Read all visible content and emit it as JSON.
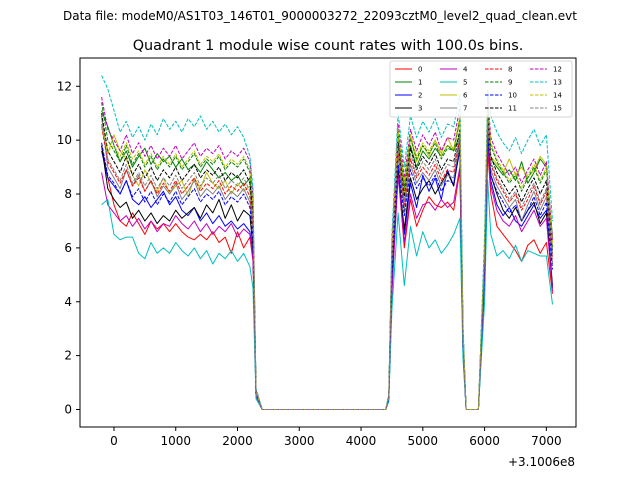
{
  "suptitle": "Data file: modeM0/AS1T03_146T01_9000003272_22093cztM0_level2_quad_clean.evt",
  "chart_data": {
    "type": "line",
    "title": "Quadrant 1 module wise count rates with 100.0s bins.",
    "xlabel": "",
    "ylabel": "",
    "x_offset_label": "+3.1006e8",
    "xlim": [
      -550,
      7480
    ],
    "ylim": [
      -0.65,
      13.05
    ],
    "xticks": [
      0,
      1000,
      2000,
      3000,
      4000,
      5000,
      6000,
      7000
    ],
    "yticks": [
      0,
      2,
      4,
      6,
      8,
      10,
      12
    ],
    "x": [
      -200,
      -100,
      0,
      100,
      200,
      300,
      400,
      500,
      600,
      700,
      800,
      900,
      1000,
      1100,
      1200,
      1300,
      1400,
      1500,
      1600,
      1700,
      1800,
      1900,
      2000,
      2100,
      2200,
      2250,
      2300,
      2400,
      2600,
      2800,
      3000,
      3200,
      3400,
      3600,
      3800,
      4000,
      4200,
      4400,
      4450,
      4500,
      4600,
      4700,
      4800,
      4900,
      5000,
      5100,
      5200,
      5300,
      5400,
      5500,
      5600,
      5650,
      5700,
      5800,
      5900,
      6000,
      6050,
      6100,
      6200,
      6300,
      6400,
      6500,
      6600,
      6700,
      6800,
      6900,
      7000,
      7100
    ],
    "series_style": [
      "solid",
      "solid",
      "solid",
      "solid",
      "solid",
      "solid",
      "solid",
      "solid",
      "dashed",
      "dashed",
      "dashed",
      "dashed",
      "dashed",
      "dashed",
      "dashed",
      "dashed"
    ],
    "legend": {
      "location": "top-right",
      "columns": 4
    },
    "series": [
      {
        "name": "0",
        "color": "#ff0000",
        "values": [
          9.8,
          8.6,
          7.6,
          7.0,
          6.8,
          7.3,
          6.9,
          6.5,
          7.0,
          6.7,
          6.9,
          6.6,
          6.9,
          6.6,
          6.4,
          6.3,
          6.5,
          6.3,
          6.6,
          6.2,
          6.4,
          5.8,
          6.6,
          6.0,
          6.4,
          5.5,
          0.5,
          0.0,
          0.0,
          0.0,
          0.0,
          0.0,
          0.0,
          0.0,
          0.0,
          0.0,
          0.0,
          0.0,
          0.4,
          4.4,
          8.9,
          6.0,
          7.8,
          6.8,
          7.4,
          7.9,
          7.6,
          7.5,
          7.7,
          7.4,
          8.9,
          2.2,
          0.0,
          0.0,
          0.0,
          4.5,
          9.6,
          8.0,
          6.8,
          6.5,
          6.2,
          5.9,
          5.5,
          6.1,
          6.3,
          5.8,
          6.2,
          4.3
        ]
      },
      {
        "name": "1",
        "color": "#008000",
        "values": [
          11.1,
          10.5,
          9.8,
          9.2,
          9.6,
          9.0,
          9.4,
          9.7,
          9.1,
          9.5,
          9.2,
          9.4,
          9.0,
          9.3,
          8.9,
          9.1,
          8.8,
          9.2,
          8.9,
          8.6,
          8.8,
          8.5,
          8.7,
          8.3,
          8.6,
          7.2,
          0.7,
          0.0,
          0.0,
          0.0,
          0.0,
          0.0,
          0.0,
          0.0,
          0.0,
          0.0,
          0.0,
          0.0,
          0.5,
          5.8,
          9.8,
          8.2,
          9.8,
          9.0,
          9.6,
          9.3,
          9.7,
          9.4,
          9.8,
          9.6,
          10.2,
          2.8,
          0.0,
          0.0,
          0.0,
          5.6,
          10.9,
          9.3,
          9.0,
          8.7,
          8.9,
          8.5,
          9.2,
          8.4,
          8.8,
          9.3,
          9.0,
          6.4
        ]
      },
      {
        "name": "2",
        "color": "#0000ff",
        "values": [
          9.6,
          8.6,
          8.3,
          8.0,
          8.5,
          7.8,
          7.6,
          7.9,
          7.5,
          7.8,
          8.1,
          7.6,
          7.9,
          7.4,
          7.2,
          7.5,
          7.0,
          7.3,
          6.9,
          7.2,
          6.8,
          7.0,
          6.7,
          6.9,
          6.6,
          5.8,
          0.6,
          0.0,
          0.0,
          0.0,
          0.0,
          0.0,
          0.0,
          0.0,
          0.0,
          0.0,
          0.0,
          0.0,
          0.4,
          4.6,
          9.0,
          6.5,
          8.4,
          7.5,
          8.7,
          8.1,
          8.6,
          7.8,
          8.9,
          8.3,
          10.1,
          2.4,
          0.0,
          0.0,
          0.0,
          5.0,
          10.2,
          8.5,
          7.6,
          7.2,
          7.5,
          7.0,
          6.8,
          7.2,
          7.6,
          7.1,
          7.4,
          4.6
        ]
      },
      {
        "name": "3",
        "color": "#000000",
        "values": [
          9.8,
          8.2,
          7.8,
          7.5,
          7.7,
          7.1,
          7.4,
          7.0,
          7.3,
          6.9,
          7.2,
          7.0,
          7.4,
          7.1,
          7.3,
          7.5,
          7.1,
          7.6,
          7.3,
          7.8,
          7.1,
          7.6,
          7.0,
          7.4,
          7.2,
          6.0,
          0.6,
          0.0,
          0.0,
          0.0,
          0.0,
          0.0,
          0.0,
          0.0,
          0.0,
          0.0,
          0.0,
          0.0,
          0.4,
          4.8,
          8.8,
          6.7,
          8.6,
          7.8,
          8.2,
          8.5,
          8.0,
          8.4,
          8.8,
          8.3,
          9.7,
          2.3,
          0.0,
          0.0,
          0.0,
          4.8,
          10.1,
          8.7,
          8.0,
          7.4,
          7.1,
          7.5,
          7.0,
          7.4,
          7.7,
          6.9,
          7.3,
          4.5
        ]
      },
      {
        "name": "4",
        "color": "#bf00bf",
        "values": [
          8.8,
          7.6,
          7.3,
          7.0,
          7.2,
          6.8,
          7.1,
          6.7,
          7.0,
          6.6,
          6.9,
          6.8,
          7.2,
          6.9,
          6.7,
          7.0,
          6.6,
          6.9,
          6.5,
          6.8,
          6.6,
          6.9,
          6.4,
          6.7,
          6.5,
          5.6,
          0.5,
          0.0,
          0.0,
          0.0,
          0.0,
          0.0,
          0.0,
          0.0,
          0.0,
          0.0,
          0.0,
          0.0,
          0.4,
          4.3,
          8.7,
          6.2,
          8.0,
          7.1,
          7.6,
          7.7,
          7.4,
          7.8,
          7.5,
          7.7,
          9.0,
          2.2,
          0.0,
          0.0,
          0.0,
          4.6,
          9.8,
          8.3,
          7.4,
          7.0,
          6.8,
          7.2,
          6.6,
          7.0,
          7.4,
          6.8,
          7.1,
          4.4
        ]
      },
      {
        "name": "5",
        "color": "#00bfbf",
        "values": [
          7.6,
          7.8,
          6.5,
          6.3,
          6.4,
          6.4,
          5.8,
          5.6,
          6.2,
          5.8,
          6.0,
          5.8,
          6.2,
          5.9,
          5.7,
          6.0,
          5.6,
          5.9,
          5.4,
          5.8,
          5.6,
          5.9,
          5.5,
          5.8,
          5.3,
          4.5,
          0.4,
          0.0,
          0.0,
          0.0,
          0.0,
          0.0,
          0.0,
          0.0,
          0.0,
          0.0,
          0.0,
          0.0,
          0.3,
          3.7,
          7.3,
          4.6,
          6.8,
          5.7,
          6.6,
          6.0,
          6.3,
          5.8,
          6.1,
          6.5,
          7.1,
          1.9,
          0.0,
          0.0,
          0.0,
          4.0,
          8.5,
          6.5,
          5.7,
          5.9,
          5.6,
          6.1,
          5.5,
          5.9,
          5.8,
          5.7,
          5.7,
          3.9
        ]
      },
      {
        "name": "6",
        "color": "#bfbf00",
        "values": [
          10.8,
          9.5,
          10.2,
          9.6,
          9.3,
          8.7,
          8.3,
          8.9,
          8.4,
          8.1,
          8.6,
          8.0,
          8.3,
          8.5,
          7.9,
          8.6,
          8.2,
          8.8,
          8.4,
          8.2,
          8.5,
          8.0,
          8.4,
          8.1,
          8.3,
          7.0,
          0.7,
          0.0,
          0.0,
          0.0,
          0.0,
          0.0,
          0.0,
          0.0,
          0.0,
          0.0,
          0.0,
          0.0,
          0.5,
          5.8,
          10.2,
          8.0,
          10.1,
          9.2,
          9.8,
          9.4,
          10.0,
          9.5,
          10.1,
          9.6,
          10.7,
          2.9,
          0.0,
          0.0,
          0.0,
          5.9,
          11.1,
          9.4,
          9.1,
          8.8,
          9.3,
          8.7,
          9.0,
          8.6,
          8.9,
          9.4,
          9.1,
          6.2
        ]
      },
      {
        "name": "7",
        "color": "#808080",
        "values": [
          10.9,
          9.0,
          8.6,
          8.2,
          8.9,
          8.3,
          8.7,
          8.1,
          8.5,
          7.9,
          8.3,
          8.0,
          8.4,
          7.8,
          8.1,
          8.5,
          7.9,
          8.2,
          8.0,
          8.3,
          7.8,
          8.1,
          7.9,
          8.2,
          7.7,
          6.6,
          0.6,
          0.0,
          0.0,
          0.0,
          0.0,
          0.0,
          0.0,
          0.0,
          0.0,
          0.0,
          0.0,
          0.0,
          0.5,
          5.2,
          9.4,
          7.4,
          9.1,
          8.4,
          8.8,
          8.5,
          8.9,
          8.3,
          8.7,
          8.6,
          9.9,
          2.6,
          0.0,
          0.0,
          0.0,
          5.3,
          10.5,
          8.9,
          8.3,
          7.9,
          7.5,
          7.8,
          7.0,
          7.6,
          8.1,
          7.4,
          7.9,
          5.4
        ]
      },
      {
        "name": "8",
        "color": "#ff0000",
        "values": [
          10.5,
          9.2,
          8.8,
          8.4,
          8.9,
          8.3,
          8.6,
          8.1,
          8.5,
          8.0,
          8.4,
          8.1,
          8.5,
          8.0,
          8.3,
          8.6,
          8.1,
          8.4,
          8.2,
          8.5,
          8.0,
          8.3,
          8.1,
          8.4,
          7.9,
          6.8,
          0.6,
          0.0,
          0.0,
          0.0,
          0.0,
          0.0,
          0.0,
          0.0,
          0.0,
          0.0,
          0.0,
          0.0,
          0.5,
          5.4,
          9.6,
          7.6,
          9.3,
          8.6,
          9.0,
          8.7,
          9.1,
          8.5,
          8.9,
          8.8,
          10.1,
          2.7,
          0.0,
          0.0,
          0.0,
          5.5,
          10.7,
          9.1,
          8.5,
          8.1,
          7.7,
          8.0,
          7.4,
          7.8,
          8.3,
          7.6,
          8.1,
          5.6
        ]
      },
      {
        "name": "9",
        "color": "#008000",
        "values": [
          11.4,
          10.0,
          9.6,
          9.2,
          9.8,
          9.1,
          9.5,
          9.0,
          9.4,
          8.9,
          9.3,
          9.0,
          9.4,
          8.9,
          9.2,
          9.5,
          9.0,
          9.3,
          9.1,
          9.4,
          8.9,
          9.2,
          9.0,
          9.3,
          8.8,
          7.5,
          0.7,
          0.0,
          0.0,
          0.0,
          0.0,
          0.0,
          0.0,
          0.0,
          0.0,
          0.0,
          0.0,
          0.0,
          0.5,
          5.9,
          10.3,
          8.3,
          10.1,
          9.3,
          9.8,
          9.5,
          9.9,
          9.3,
          9.7,
          9.6,
          10.8,
          2.9,
          0.0,
          0.0,
          0.0,
          6.0,
          11.3,
          9.8,
          9.2,
          8.8,
          8.4,
          8.7,
          8.1,
          8.6,
          9.0,
          8.4,
          8.9,
          6.0
        ]
      },
      {
        "name": "10",
        "color": "#0000ff",
        "values": [
          9.9,
          8.7,
          8.4,
          8.0,
          8.5,
          7.9,
          8.2,
          7.7,
          8.1,
          7.6,
          8.0,
          7.7,
          8.1,
          7.6,
          7.9,
          8.2,
          7.7,
          8.0,
          7.8,
          8.1,
          7.6,
          7.9,
          7.7,
          8.0,
          7.5,
          6.4,
          0.6,
          0.0,
          0.0,
          0.0,
          0.0,
          0.0,
          0.0,
          0.0,
          0.0,
          0.0,
          0.0,
          0.0,
          0.4,
          5.0,
          9.1,
          7.2,
          8.9,
          8.2,
          8.6,
          8.3,
          8.7,
          8.1,
          8.5,
          8.4,
          9.6,
          2.5,
          0.0,
          0.0,
          0.0,
          5.1,
          10.2,
          8.7,
          8.1,
          7.7,
          7.3,
          7.6,
          7.0,
          7.4,
          7.9,
          7.2,
          7.7,
          5.2
        ]
      },
      {
        "name": "11",
        "color": "#000000",
        "values": [
          11.0,
          9.6,
          9.2,
          8.8,
          9.4,
          8.7,
          9.1,
          8.6,
          9.0,
          8.5,
          8.9,
          8.6,
          9.0,
          8.5,
          8.8,
          9.1,
          8.6,
          8.9,
          8.7,
          9.0,
          8.5,
          8.8,
          8.6,
          8.9,
          8.4,
          7.2,
          0.7,
          0.0,
          0.0,
          0.0,
          0.0,
          0.0,
          0.0,
          0.0,
          0.0,
          0.0,
          0.0,
          0.0,
          0.5,
          5.6,
          9.9,
          7.9,
          9.7,
          8.9,
          9.4,
          9.1,
          9.5,
          8.9,
          9.3,
          9.2,
          10.4,
          2.8,
          0.0,
          0.0,
          0.0,
          5.8,
          10.9,
          9.4,
          8.8,
          8.4,
          8.0,
          8.3,
          7.7,
          8.2,
          8.6,
          8.0,
          8.5,
          5.8
        ]
      },
      {
        "name": "12",
        "color": "#bf00bf",
        "values": [
          11.6,
          10.4,
          10.0,
          9.6,
          10.2,
          9.5,
          9.9,
          9.4,
          9.8,
          9.3,
          9.7,
          9.4,
          9.8,
          9.3,
          9.6,
          9.9,
          9.4,
          9.7,
          9.5,
          9.8,
          9.3,
          9.6,
          9.4,
          9.7,
          9.2,
          7.9,
          0.7,
          0.0,
          0.0,
          0.0,
          0.0,
          0.0,
          0.0,
          0.0,
          0.0,
          0.0,
          0.0,
          0.0,
          0.5,
          6.1,
          10.6,
          8.6,
          10.4,
          9.6,
          10.2,
          9.8,
          10.3,
          9.6,
          10.1,
          10.0,
          11.2,
          3.0,
          0.0,
          0.0,
          0.0,
          6.2,
          11.6,
          10.1,
          9.5,
          9.1,
          8.7,
          9.0,
          8.4,
          8.9,
          9.3,
          8.7,
          9.2,
          6.3
        ]
      },
      {
        "name": "13",
        "color": "#00bfbf",
        "values": [
          12.4,
          11.9,
          11.1,
          10.3,
          10.7,
          10.1,
          10.5,
          10.0,
          10.6,
          10.2,
          10.8,
          10.4,
          10.7,
          10.3,
          10.8,
          10.5,
          10.9,
          10.4,
          10.7,
          10.3,
          10.6,
          10.2,
          10.5,
          10.1,
          9.4,
          8.2,
          0.8,
          0.0,
          0.0,
          0.0,
          0.0,
          0.0,
          0.0,
          0.0,
          0.0,
          0.0,
          0.0,
          0.0,
          0.6,
          6.5,
          11.0,
          9.0,
          10.9,
          10.1,
          10.7,
          10.3,
          10.8,
          10.1,
          10.6,
          10.5,
          11.7,
          3.2,
          0.0,
          0.0,
          0.0,
          6.5,
          11.9,
          10.9,
          10.3,
          9.9,
          9.6,
          10.1,
          9.5,
          10.0,
          10.4,
          9.8,
          10.2,
          7.0
        ]
      },
      {
        "name": "14",
        "color": "#bfbf00",
        "values": [
          10.5,
          9.6,
          9.8,
          9.4,
          9.9,
          9.3,
          9.6,
          9.1,
          9.5,
          9.0,
          9.4,
          9.1,
          9.5,
          9.0,
          9.3,
          9.6,
          9.1,
          9.4,
          9.2,
          9.5,
          9.0,
          9.3,
          9.1,
          9.4,
          8.9,
          7.6,
          0.7,
          0.0,
          0.0,
          0.0,
          0.0,
          0.0,
          0.0,
          0.0,
          0.0,
          0.0,
          0.0,
          0.0,
          0.5,
          6.0,
          10.4,
          8.4,
          10.2,
          9.4,
          9.9,
          9.6,
          10.0,
          9.4,
          9.8,
          9.7,
          10.9,
          2.9,
          0.0,
          0.0,
          0.0,
          6.1,
          11.4,
          9.9,
          9.3,
          8.9,
          8.5,
          8.8,
          8.2,
          8.7,
          9.1,
          8.5,
          9.0,
          6.1
        ]
      },
      {
        "name": "15",
        "color": "#808080",
        "values": [
          10.6,
          9.3,
          8.9,
          8.5,
          9.1,
          8.4,
          8.8,
          8.3,
          8.7,
          8.2,
          8.6,
          8.3,
          8.7,
          8.2,
          8.5,
          8.8,
          8.3,
          8.6,
          8.4,
          8.7,
          8.2,
          8.5,
          8.3,
          8.6,
          8.1,
          6.9,
          0.6,
          0.0,
          0.0,
          0.0,
          0.0,
          0.0,
          0.0,
          0.0,
          0.0,
          0.0,
          0.0,
          0.0,
          0.5,
          5.5,
          9.7,
          7.7,
          9.5,
          8.7,
          9.2,
          8.9,
          9.3,
          8.7,
          9.1,
          9.0,
          10.2,
          2.7,
          0.0,
          0.0,
          0.0,
          5.6,
          10.8,
          9.2,
          8.6,
          8.2,
          7.8,
          8.1,
          7.5,
          8.0,
          8.4,
          7.7,
          8.2,
          5.7
        ]
      }
    ]
  }
}
